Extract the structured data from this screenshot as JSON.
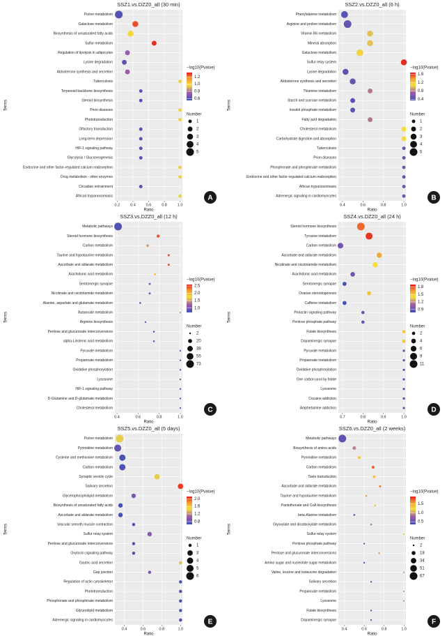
{
  "chart_data": [
    {
      "type": "bubble",
      "panel": "A",
      "title": "SSZ1.vs.DZZ0_all (30 min)",
      "x_label": "Ratio",
      "y_label": "Terms",
      "categories": [
        "Purine metabolism",
        "Galactose metabolism",
        "Biosynthesis of unsaturated fatty acids",
        "Sulfur metabolism",
        "Regulation of lipolysis in adipocytes",
        "Lysine degradation",
        "Aldosterone synthesis and secretion",
        "Tuberculosis",
        "Terpenoid backbone biosynthesis",
        "Steroid biosynthesis",
        "Prion diseases",
        "Phototransduction",
        "Olfactory transduction",
        "Long-term depression",
        "HIF-1 signaling pathway",
        "Glycolysis / Gluconeogenesis",
        "Endocrine and other factor-regulated calcium reabsorption",
        "Drug metabolism - other enzymes",
        "Circadian entrainment",
        "African trypanosomiasis"
      ],
      "x": [
        0.22,
        0.43,
        0.37,
        0.67,
        0.33,
        0.29,
        0.33,
        1.0,
        0.5,
        0.5,
        1.0,
        1.0,
        0.5,
        0.5,
        0.5,
        0.5,
        1.0,
        1.0,
        0.5,
        1.0
      ],
      "size": [
        5,
        3,
        3,
        2,
        2,
        2,
        2,
        1,
        1,
        1,
        1,
        1,
        1,
        1,
        1,
        1,
        1,
        1,
        1,
        1
      ],
      "color_values": [
        0.6,
        1.25,
        1.0,
        1.3,
        0.75,
        0.62,
        0.75,
        0.95,
        0.6,
        0.6,
        0.95,
        0.95,
        0.6,
        0.6,
        0.6,
        0.6,
        0.95,
        0.95,
        0.6,
        0.95
      ],
      "xlim": [
        0.17,
        1.03
      ],
      "xticks": [
        0.2,
        0.4,
        0.6,
        0.8,
        {
          "value": 1,
          "label": "1.0"
        }
      ],
      "color_label": "−log10(Pvalue)",
      "clim": [
        0.55,
        1.32
      ],
      "cticks": [
        0.6,
        0.8,
        {
          "value": 1,
          "label": "1.0"
        },
        1.2
      ],
      "size_label": "Number",
      "size_ticks": [
        1,
        2,
        3,
        4,
        5
      ]
    },
    {
      "type": "bubble",
      "panel": "B",
      "title": "SSZ2.vs.DZZ0_all (6 h)",
      "x_label": "Ratio",
      "y_label": "Terms",
      "categories": [
        "Phenylalanine metabolism",
        "Arginine and proline metabolism",
        "Vitamin B6 metabolism",
        "Mineral absorption",
        "Galactose metabolism",
        "Sulfur relay system",
        "Lysine degradation",
        "Aldosterone synthesis and secretion",
        "Thiamine metabolism",
        "Starch and sucrose metabolism",
        "Inositol phosphate metabolism",
        "Fatty acid degradation",
        "Cholesterol metabolism",
        "Carbohydrate digestion and absorption",
        "Tuberculosis",
        "Prion diseases",
        "Phosphonate and phosphinate metabolism",
        "Endocrine and other factor-regulated calcium reabsorption",
        "African trypanosomiasis",
        "Adrenergic signaling in cardiomyocytes"
      ],
      "x": [
        0.42,
        0.45,
        0.67,
        0.67,
        0.57,
        1.0,
        0.43,
        0.5,
        0.67,
        0.5,
        0.5,
        0.67,
        1.0,
        1.0,
        1.0,
        1.0,
        1.0,
        1.0,
        1.0,
        1.0
      ],
      "size": [
        4,
        5,
        3,
        3,
        4,
        3,
        3,
        3,
        2,
        2,
        2,
        2,
        2,
        2,
        1,
        1,
        1,
        1,
        1,
        1
      ],
      "color_values": [
        0.45,
        0.5,
        1.0,
        1.0,
        1.05,
        1.65,
        0.45,
        0.5,
        0.8,
        0.45,
        0.45,
        0.8,
        1.1,
        1.1,
        0.5,
        0.5,
        0.5,
        0.5,
        0.5,
        0.5
      ],
      "xlim": [
        0.36,
        1.02
      ],
      "xticks": [
        0.4,
        0.6,
        0.8,
        {
          "value": 1,
          "label": "1.0"
        }
      ],
      "color_label": "−log10(Pvalue)",
      "clim": [
        0.35,
        1.68
      ],
      "cticks": [
        0.4,
        0.8,
        1.2,
        1.6
      ],
      "size_label": "Number",
      "size_ticks": [
        1,
        2,
        3,
        4,
        5
      ]
    },
    {
      "type": "bubble",
      "panel": "C",
      "title": "SSZ3.vs.DZZ0_all (12 h)",
      "x_label": "Ratio",
      "y_label": "Terms",
      "categories": [
        "Metabolic pathways",
        "Steroid hormone biosynthesis",
        "Carbon metabolism",
        "Taurine and hypotaurine metabolism",
        "Ascorbate and aldarate metabolism",
        "Arachidonic acid metabolism",
        "Serotonergic synapse",
        "Nicotinate and nicotinamide metabolism",
        "Alanine, aspartate and glutamate metabolism",
        "Butanoate metabolism",
        "Arginine biosynthesis",
        "Pentose and glucuronate interconversions",
        "alpha-Linolenic acid metabolism",
        "Pyruvate metabolism",
        "Propanoate metabolism",
        "Oxidative phosphorylation",
        "Lysosome",
        "HIF-1 signaling pathway",
        "D-Glutamine and D-glutamate metabolism",
        "Cholesterol metabolism"
      ],
      "x": [
        0.41,
        0.79,
        0.69,
        0.89,
        0.89,
        0.76,
        0.71,
        0.71,
        0.62,
        1.0,
        0.67,
        0.75,
        0.75,
        1.0,
        1.0,
        1.0,
        1.0,
        1.0,
        1.0,
        1.0
      ],
      "size": [
        73,
        12,
        8,
        6,
        6,
        5,
        5,
        5,
        4,
        3,
        3,
        4,
        4,
        2,
        2,
        2,
        2,
        2,
        2,
        2
      ],
      "color_values": [
        0.8,
        2.4,
        1.5,
        2.4,
        2.4,
        1.9,
        1.0,
        1.0,
        0.8,
        1.5,
        0.8,
        0.9,
        0.9,
        0.9,
        0.9,
        0.9,
        0.9,
        0.9,
        0.9,
        0.9
      ],
      "xlim": [
        0.38,
        1.02
      ],
      "xticks": [
        0.4,
        0.6,
        0.8,
        {
          "value": 1,
          "label": "1.0"
        }
      ],
      "color_label": "−log10(Pvalue)",
      "clim": [
        0.7,
        2.6
      ],
      "cticks": [
        {
          "value": 1,
          "label": "1.0"
        },
        1.5,
        {
          "value": 2,
          "label": "2.0"
        },
        2.5
      ],
      "size_label": "Number",
      "size_ticks": [
        2,
        20,
        38,
        55,
        73
      ]
    },
    {
      "type": "bubble",
      "panel": "D",
      "title": "SSZ4.vs.DZZ0_all (24 h)",
      "x_label": "Ratio",
      "y_label": "Terms",
      "categories": [
        "Steroid hormone biosynthesis",
        "Tyrosine metabolism",
        "Carbon metabolism",
        "Ascorbate and aldarate metabolism",
        "Nicotinate and nicotinamide metabolism",
        "Arachidonic acid metabolism",
        "Serotonergic synapse",
        "Ovarian steroidogenesis",
        "Caffeine metabolism",
        "Prolactin signaling pathway",
        "Pentose phosphate pathway",
        "Folate biosynthesis",
        "Dopaminergic synapse",
        "Pyruvate metabolism",
        "Propanoate metabolism",
        "Oxidative phosphorylation",
        "One carbon pool by folate",
        "Lysosome",
        "Cocaine addiction",
        "Amphetamine addiction"
      ],
      "x": [
        0.79,
        0.83,
        0.69,
        0.88,
        0.86,
        0.75,
        0.71,
        0.83,
        0.71,
        0.8,
        0.8,
        1.0,
        1.0,
        1.0,
        1.0,
        1.0,
        1.0,
        1.0,
        1.0,
        1.0
      ],
      "size": [
        11,
        9,
        6,
        5,
        5,
        4,
        3,
        3,
        3,
        2,
        2,
        2,
        2,
        1,
        1,
        1,
        1,
        1,
        1,
        1
      ],
      "color_values": [
        1.75,
        1.85,
        0.95,
        1.6,
        1.4,
        0.95,
        0.8,
        1.5,
        0.8,
        0.9,
        0.9,
        1.5,
        1.5,
        0.85,
        0.85,
        0.85,
        0.85,
        0.85,
        0.85,
        0.85
      ],
      "xlim": [
        0.68,
        1.01
      ],
      "xticks": [
        0.7,
        0.8,
        0.9,
        {
          "value": 1,
          "label": "1.0"
        }
      ],
      "color_label": "−log10(Pvalue)",
      "clim": [
        0.78,
        1.9
      ],
      "cticks": [
        0.9,
        1.2,
        1.5,
        1.8
      ],
      "size_label": "Number",
      "size_ticks": [
        2,
        4,
        6,
        9,
        11
      ]
    },
    {
      "type": "bubble",
      "panel": "E",
      "title": "SSZ5.vs.DZZ0_all (5 days)",
      "x_label": "Ratio",
      "y_label": "Terms",
      "categories": [
        "Purine metabolism",
        "Pyrimidine metabolism",
        "Cysteine and methionine metabolism",
        "Carbon metabolism",
        "Synaptic vesicle cycle",
        "Salivary secretion",
        "Glycerophospholipid metabolism",
        "Biosynthesis of unsaturated fatty acids",
        "Ascorbate and aldarate metabolism",
        "Vascular smooth muscle contraction",
        "Sulfur relay system",
        "Pentose and glucuronate interconversions",
        "Oxytocin signaling pathway",
        "Gastric acid secretion",
        "Gap junction",
        "Regulation of actin cytoskeleton",
        "Phototransduction",
        "Phosphonate and phosphinate metabolism",
        "Glycerolipid metabolism",
        "Adrenergic signaling in cardiomyocytes"
      ],
      "x": [
        0.35,
        0.33,
        0.38,
        0.38,
        0.75,
        1.0,
        0.5,
        0.36,
        0.36,
        0.5,
        0.67,
        0.5,
        0.5,
        1.0,
        0.67,
        1.0,
        1.0,
        1.0,
        1.0,
        1.0
      ],
      "size": [
        6,
        5,
        4,
        4,
        3,
        3,
        2,
        2,
        2,
        1,
        2,
        1,
        1,
        1,
        1,
        1,
        1,
        1,
        1,
        1
      ],
      "color_values": [
        1.4,
        0.8,
        0.7,
        0.7,
        1.4,
        2.05,
        0.9,
        0.68,
        0.68,
        0.7,
        0.95,
        0.7,
        0.7,
        1.35,
        0.9,
        0.7,
        0.7,
        0.7,
        0.7,
        0.7
      ],
      "xlim": [
        0.3,
        1.02
      ],
      "xticks": [
        0.4,
        0.6,
        0.8,
        {
          "value": 1,
          "label": "1.0"
        }
      ],
      "color_label": "−log10(Pvalue)",
      "clim": [
        0.65,
        2.12
      ],
      "cticks": [
        0.8,
        1.2,
        1.6,
        {
          "value": 2,
          "label": "2.0"
        }
      ],
      "size_label": "Number",
      "size_ticks": [
        1,
        3,
        4,
        5,
        6
      ]
    },
    {
      "type": "bubble",
      "panel": "F",
      "title": "SSZ6.vs.DZZ0_all (2 weeks)",
      "x_label": "Ratio",
      "y_label": "Terms",
      "categories": [
        "Metabolic pathways",
        "Biosynthesis of amino acids",
        "Pyrimidine metabolism",
        "Carbon metabolism",
        "Taste transduction",
        "Ascorbate and aldarate metabolism",
        "Taurine and hypotaurine metabolism",
        "Pantothenate and CoA biosynthesis",
        "beta-Alanine metabolism",
        "Glyoxylate and dicarboxylate metabolism",
        "Sulfur relay system",
        "Pentose phosphate pathway",
        "Pentose and glucuronate interconversions",
        "Amino sugar and nucleotide sugar metabolism",
        "Valine, leucine and isoleucine degradation",
        "Salivary secretion",
        "Propanoate metabolism",
        "Lysosome",
        "Folate biosynthesis",
        "Dopaminergic synapse"
      ],
      "x": [
        0.38,
        0.5,
        0.55,
        0.69,
        0.7,
        0.76,
        0.62,
        0.71,
        0.5,
        0.67,
        1.0,
        0.6,
        0.75,
        0.6,
        1.0,
        0.67,
        1.0,
        1.0,
        0.67,
        0.67
      ],
      "size": [
        67,
        14,
        10,
        10,
        7,
        5,
        4,
        4,
        4,
        4,
        3,
        3,
        3,
        3,
        2,
        3,
        2,
        2,
        2,
        2
      ],
      "color_values": [
        0.5,
        0.9,
        1.3,
        1.7,
        1.4,
        1.65,
        1.0,
        1.3,
        0.5,
        0.9,
        1.3,
        0.5,
        1.0,
        0.5,
        1.0,
        0.5,
        1.0,
        1.0,
        0.5,
        0.5
      ],
      "xlim": [
        0.34,
        1.02
      ],
      "xticks": [
        0.4,
        0.6,
        0.8,
        {
          "value": 1,
          "label": "1.0"
        }
      ],
      "color_label": "−log10(Pvalue)",
      "clim": [
        0.35,
        1.9
      ],
      "cticks": [
        0.5,
        {
          "value": 1,
          "label": "1.0"
        },
        1.5
      ],
      "size_label": "Number",
      "size_ticks": [
        2,
        18,
        34,
        51,
        67
      ]
    }
  ]
}
